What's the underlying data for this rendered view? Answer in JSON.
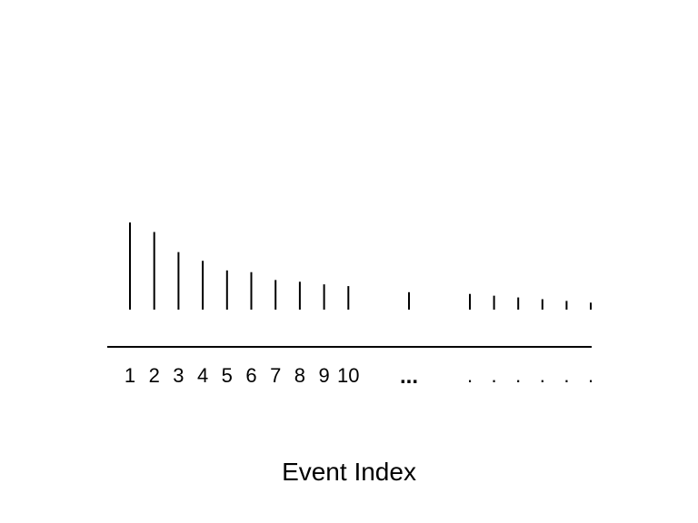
{
  "figure": {
    "stroke_color": "#000000",
    "background_color": "#ffffff",
    "xlabel": "Event Index",
    "ellipsis": "...",
    "dot_label": ".",
    "labeled_events": [
      {
        "label": "1",
        "height": 1.0
      },
      {
        "label": "2",
        "height": 0.89
      },
      {
        "label": "3",
        "height": 0.66
      },
      {
        "label": "4",
        "height": 0.56
      },
      {
        "label": "5",
        "height": 0.45
      },
      {
        "label": "6",
        "height": 0.43
      },
      {
        "label": "7",
        "height": 0.34
      },
      {
        "label": "8",
        "height": 0.32
      },
      {
        "label": "9",
        "height": 0.29
      },
      {
        "label": "10",
        "height": 0.27
      }
    ],
    "middle_event": {
      "height": 0.2
    },
    "trailing_events": [
      {
        "height": 0.18
      },
      {
        "height": 0.16
      },
      {
        "height": 0.14
      },
      {
        "height": 0.12
      },
      {
        "height": 0.1
      },
      {
        "height": 0.08
      }
    ]
  }
}
